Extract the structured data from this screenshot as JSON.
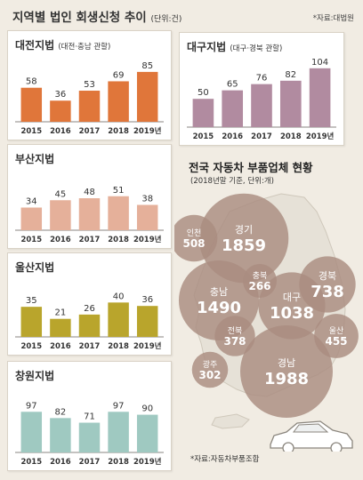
{
  "header": {
    "title": "지역별 법인 회생신청 추이",
    "unit": "(단위:건)",
    "source": "*자료:대법원"
  },
  "chart_data": [
    {
      "type": "bar",
      "title": "대전지법",
      "subtitle": "(대전·충남 관할)",
      "categories": [
        "2015",
        "2016",
        "2017",
        "2018",
        "2019년"
      ],
      "values": [
        58,
        36,
        53,
        69,
        85
      ],
      "color": "#e0763a",
      "ylim": [
        0,
        100
      ]
    },
    {
      "type": "bar",
      "title": "대구지법",
      "subtitle": "(대구·경북 관할)",
      "categories": [
        "2015",
        "2016",
        "2017",
        "2018",
        "2019년"
      ],
      "values": [
        50,
        65,
        76,
        82,
        104
      ],
      "color": "#b18ba0",
      "ylim": [
        0,
        110
      ]
    },
    {
      "type": "bar",
      "title": "부산지법",
      "subtitle": "",
      "categories": [
        "2015",
        "2016",
        "2017",
        "2018",
        "2019년"
      ],
      "values": [
        34,
        45,
        48,
        51,
        38
      ],
      "color": "#e5b09a",
      "ylim": [
        0,
        80
      ]
    },
    {
      "type": "bar",
      "title": "울산지법",
      "subtitle": "",
      "categories": [
        "2015",
        "2016",
        "2017",
        "2018",
        "2019년"
      ],
      "values": [
        35,
        21,
        26,
        40,
        36
      ],
      "color": "#b9a52c",
      "ylim": [
        0,
        60
      ]
    },
    {
      "type": "bar",
      "title": "창원지법",
      "subtitle": "",
      "categories": [
        "2015",
        "2016",
        "2017",
        "2018",
        "2019년"
      ],
      "values": [
        97,
        82,
        71,
        97,
        90
      ],
      "color": "#9fc9c1",
      "ylim": [
        0,
        140
      ]
    }
  ],
  "map": {
    "title": "전국 자동차 부품업체 현황",
    "subtitle": "(2018년말 기준, 단위:개)",
    "source": "*자료:자동차부품조합",
    "bubble_color": "#a98c80",
    "regions": [
      {
        "name": "인천",
        "value": 508
      },
      {
        "name": "경기",
        "value": 1859
      },
      {
        "name": "충북",
        "value": 266
      },
      {
        "name": "충남",
        "value": 1490
      },
      {
        "name": "대구",
        "value": 1038
      },
      {
        "name": "경북",
        "value": 738
      },
      {
        "name": "전북",
        "value": 378
      },
      {
        "name": "울산",
        "value": 455
      },
      {
        "name": "광주",
        "value": 302
      },
      {
        "name": "경남",
        "value": 1988
      }
    ]
  }
}
